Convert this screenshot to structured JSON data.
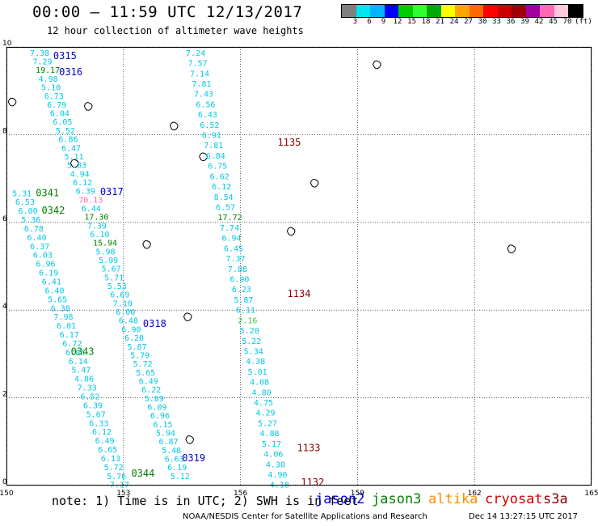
{
  "header": {
    "title": "00:00 – 11:59 UTC 12/13/2017",
    "subtitle": "12 hour collection of altimeter wave heights"
  },
  "color_scale": {
    "unit_label": "(ft)",
    "swatches": [
      "#808080",
      "#00e5ee",
      "#00b4ff",
      "#0000ff",
      "#00cc00",
      "#32ff32",
      "#00aa00",
      "#ffff00",
      "#ffa500",
      "#ff6a00",
      "#ff0000",
      "#cc0000",
      "#a00000",
      "#a000a0",
      "#ff69b4",
      "#ffc8dc",
      "#000000"
    ],
    "labels": [
      "3",
      "6",
      "9",
      "12",
      "15",
      "18",
      "21",
      "24",
      "27",
      "30",
      "33",
      "36",
      "39",
      "42",
      "45",
      "70"
    ]
  },
  "axes": {
    "x_ticks": [
      "150",
      "153",
      "156",
      "159",
      "162",
      "165"
    ],
    "y_ticks": [
      "0",
      "2",
      "4",
      "6",
      "8",
      "10"
    ]
  },
  "footer": {
    "note": "note: 1) Time is in UTC; 2) SWH is in feet",
    "credit": "NOAA/NESDIS Center for Satellite Applications and Research",
    "timestamp": "Dec 14 13:27:15 UTC 2017"
  },
  "satellites": [
    {
      "name": "jason2",
      "color": "#0000cc"
    },
    {
      "name": "jason3",
      "color": "#008000"
    },
    {
      "name": "altika",
      "color": "#ff8c00"
    },
    {
      "name": "cryosat",
      "color": "#cc0000"
    },
    {
      "name": "s3a",
      "color": "#8b0000"
    }
  ],
  "map_data": {
    "colors": {
      "cyan": "#00c8e6",
      "green": "#008000",
      "blue": "#0000cc",
      "darkred": "#8b0000",
      "pink": "#ff69b4",
      "lightgreen": "#32cd32"
    },
    "pass_labels": [
      {
        "text": "0315",
        "lon": 151.2,
        "lat": 9.72,
        "color": "#0000cc"
      },
      {
        "text": "0316",
        "lon": 151.35,
        "lat": 9.35,
        "color": "#0000cc"
      },
      {
        "text": "0317",
        "lon": 152.4,
        "lat": 6.62,
        "color": "#0000cc"
      },
      {
        "text": "0341",
        "lon": 150.75,
        "lat": 6.6,
        "color": "#008000"
      },
      {
        "text": "0342",
        "lon": 150.9,
        "lat": 6.2,
        "color": "#008000"
      },
      {
        "text": "0318",
        "lon": 153.5,
        "lat": 3.62,
        "color": "#0000cc"
      },
      {
        "text": "0343",
        "lon": 151.65,
        "lat": 2.98,
        "color": "#008000"
      },
      {
        "text": "0319",
        "lon": 154.5,
        "lat": 0.55,
        "color": "#0000cc"
      },
      {
        "text": "0344",
        "lon": 153.2,
        "lat": 0.2,
        "color": "#008000"
      },
      {
        "text": "1135",
        "lon": 156.95,
        "lat": 7.75,
        "color": "#8b0000"
      },
      {
        "text": "1134",
        "lon": 157.2,
        "lat": 4.3,
        "color": "#8b0000"
      },
      {
        "text": "1133",
        "lon": 157.45,
        "lat": 0.78,
        "color": "#8b0000"
      },
      {
        "text": "1132",
        "lon": 157.55,
        "lat": 0.0,
        "color": "#8b0000"
      }
    ],
    "tracks": [
      {
        "values": [
          "7.38",
          "7.29",
          "19.17",
          "4.98",
          "5.10",
          "6.73",
          "6.79",
          "6.04",
          "6.05",
          "5.52",
          "6.86",
          "6.47",
          "5.11",
          "5.83",
          "4.94",
          "6.12",
          "6.39",
          "70.13",
          "6.44",
          "17.30",
          "7.39",
          "6.10",
          "15.94",
          "5.98",
          "5.99",
          "5.67",
          "5.71",
          "5.53",
          "6.69",
          "7.10",
          "6.00",
          "6.48",
          "6.90",
          "6.20",
          "5.87",
          "5.79",
          "5.72",
          "5.65",
          "6.49",
          "6.22",
          "5.89",
          "6.09",
          "6.96",
          "6.15",
          "5.94",
          "6.87",
          "5.48",
          "6.63",
          "6.19",
          "5.12"
        ],
        "colors": {
          "2": "#008000",
          "17": "#ff69b4",
          "19": "#008000",
          "22": "#008000"
        },
        "lon_start": 150.6,
        "lat_start": 9.8,
        "lon_end": 154.2,
        "lat_end": 0.15
      },
      {
        "values": [
          "5.31",
          "6.53",
          "6.00",
          "5.36",
          "6.78",
          "6.40",
          "6.37",
          "6.03",
          "6.96",
          "6.19",
          "6.41",
          "6.40",
          "5.65",
          "6.38",
          "7.98",
          "6.01",
          "6.17",
          "6.72",
          "6.06",
          "6.14",
          "5.47",
          "4.86",
          "7.33",
          "6.52",
          "6.39",
          "5.67",
          "6.33",
          "6.12",
          "6.49",
          "6.65",
          "6.13",
          "5.72",
          "5.76",
          "7.17"
        ],
        "colors": {},
        "lon_start": 150.15,
        "lat_start": 6.6,
        "lon_end": 152.65,
        "lat_end": -0.05
      },
      {
        "values": [
          "7.24",
          "7.57",
          "7.14",
          "7.81",
          "7.43",
          "6.56",
          "6.43",
          "6.52",
          "6.91",
          "7.81",
          "6.84",
          "6.75",
          "6.62",
          "6.12",
          "8.54",
          "6.57",
          "17.72",
          "7.74",
          "6.94",
          "6.45",
          "7.37",
          "7.88",
          "6.90",
          "6.23",
          "5.87",
          "6.11",
          "2.16",
          "5.20",
          "5.22",
          "5.34",
          "4.38",
          "5.01",
          "4.08",
          "4.80",
          "4.75",
          "4.29",
          "5.27",
          "4.88",
          "5.17",
          "4.06",
          "4.30",
          "4.90",
          "4.18"
        ],
        "colors": {
          "16": "#008000",
          "26": "#32cd32"
        },
        "lon_start": 154.6,
        "lat_start": 9.8,
        "lon_end": 156.75,
        "lat_end": -0.05
      }
    ],
    "islands": [
      {
        "lon": 150.15,
        "lat": 8.75
      },
      {
        "lon": 151.75,
        "lat": 7.35
      },
      {
        "lon": 152.1,
        "lat": 8.65
      },
      {
        "lon": 155.05,
        "lat": 7.5
      },
      {
        "lon": 157.9,
        "lat": 6.9
      },
      {
        "lon": 153.6,
        "lat": 5.5
      },
      {
        "lon": 159.5,
        "lat": 9.6
      },
      {
        "lon": 162.95,
        "lat": 5.4
      },
      {
        "lon": 154.3,
        "lat": 8.2
      },
      {
        "lon": 157.3,
        "lat": 5.8
      },
      {
        "lon": 154.65,
        "lat": 3.85
      },
      {
        "lon": 154.7,
        "lat": 1.05
      }
    ]
  }
}
